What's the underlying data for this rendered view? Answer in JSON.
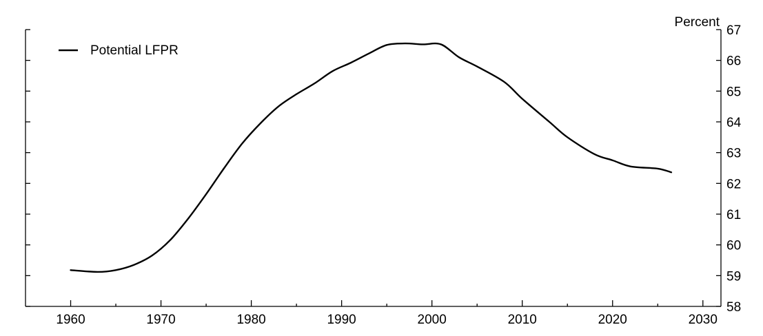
{
  "chart_data": {
    "type": "line",
    "title": "",
    "xlabel": "",
    "ylabel": "Percent",
    "xlim": [
      1955,
      2032
    ],
    "ylim": [
      58,
      67
    ],
    "xticks": [
      1960,
      1970,
      1980,
      1990,
      2000,
      2010,
      2020,
      2030
    ],
    "yticks": [
      58,
      59,
      60,
      61,
      62,
      63,
      64,
      65,
      66,
      67
    ],
    "grid": false,
    "y_axis_side": "right",
    "legend": {
      "position": "top-left"
    },
    "series": [
      {
        "name": "Potential LFPR",
        "color": "#000000",
        "x": [
          1960,
          1963,
          1965,
          1967,
          1969,
          1971,
          1973,
          1975,
          1977,
          1979,
          1981,
          1983,
          1985,
          1987,
          1989,
          1991,
          1993,
          1995,
          1997,
          1999,
          2001,
          2003,
          2005,
          2008,
          2010,
          2013,
          2015,
          2018,
          2020,
          2022,
          2025,
          2026.5
        ],
        "y": [
          59.18,
          59.12,
          59.18,
          59.35,
          59.65,
          60.15,
          60.85,
          61.65,
          62.5,
          63.3,
          63.95,
          64.5,
          64.9,
          65.25,
          65.65,
          65.92,
          66.22,
          66.5,
          66.55,
          66.52,
          66.52,
          66.1,
          65.8,
          65.3,
          64.75,
          64.0,
          63.5,
          62.95,
          62.75,
          62.55,
          62.48,
          62.36
        ]
      }
    ]
  }
}
